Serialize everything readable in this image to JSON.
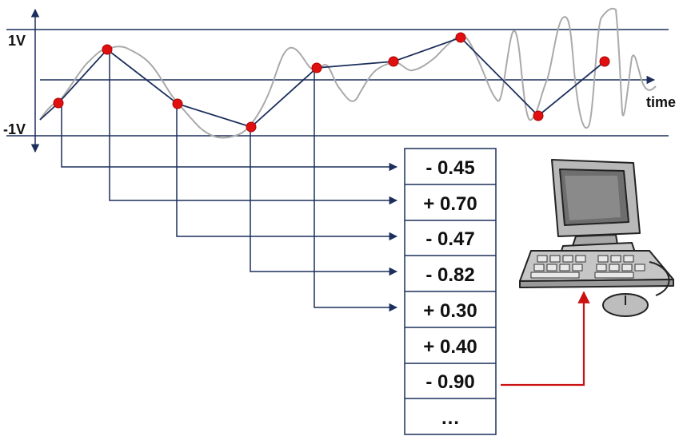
{
  "labels": {
    "v_high": "1V",
    "v_low": "-1V",
    "time": "time"
  },
  "samples": [
    {
      "value": "- 0.45",
      "mapped": true
    },
    {
      "value": "+ 0.70",
      "mapped": true
    },
    {
      "value": "- 0.47",
      "mapped": true
    },
    {
      "value": "- 0.82",
      "mapped": true
    },
    {
      "value": "+ 0.30",
      "mapped": true
    },
    {
      "value": "+ 0.40",
      "mapped": false
    },
    {
      "value": "- 0.90",
      "mapped": false
    },
    {
      "value": "…",
      "mapped": false
    }
  ],
  "icons": {
    "computer": "computer-icon",
    "mouse": "mouse-icon"
  },
  "colors": {
    "axis": "#1c2f5c",
    "sample_point": "#e01010",
    "analog_signal": "#aaaaaa",
    "output_arrow": "#cc1111"
  }
}
